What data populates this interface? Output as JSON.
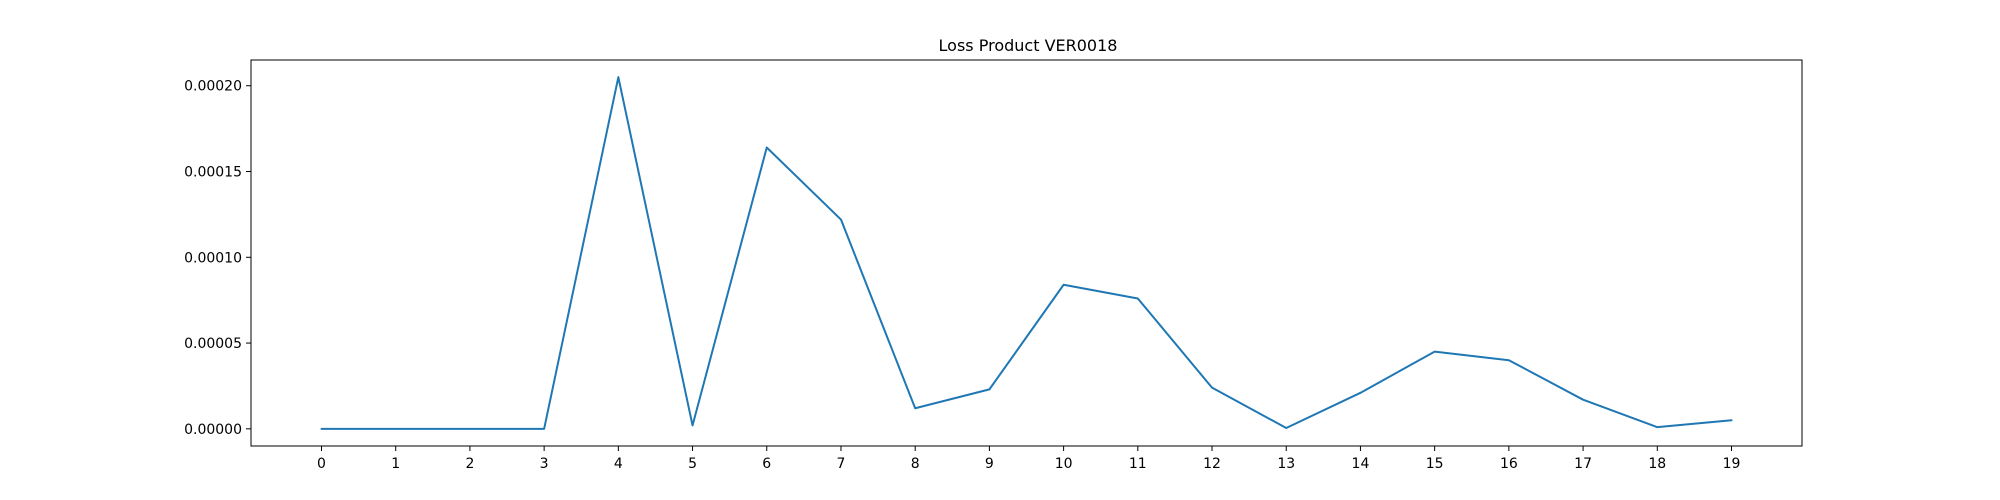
{
  "chart_data": {
    "type": "line",
    "title": "Loss Product VER0018",
    "xlabel": "",
    "ylabel": "",
    "x": [
      0,
      1,
      2,
      3,
      4,
      5,
      6,
      7,
      8,
      9,
      10,
      11,
      12,
      13,
      14,
      15,
      16,
      17,
      18,
      19
    ],
    "x_tick_labels": [
      "0",
      "1",
      "2",
      "3",
      "4",
      "5",
      "6",
      "7",
      "8",
      "9",
      "10",
      "11",
      "12",
      "13",
      "14",
      "15",
      "16",
      "17",
      "18",
      "19"
    ],
    "series": [
      {
        "values": [
          0.0,
          0.0,
          0.0,
          0.0,
          0.000205,
          2e-06,
          0.000164,
          0.000122,
          1.2e-05,
          2.3e-05,
          8.4e-05,
          7.6e-05,
          2.4e-05,
          5e-07,
          2.1e-05,
          4.5e-05,
          4e-05,
          1.7e-05,
          1e-06,
          5e-06
        ],
        "color": "#1f77b4"
      }
    ],
    "y_ticks": [
      0.0,
      5e-05,
      0.0001,
      0.00015,
      0.0002
    ],
    "y_tick_labels": [
      "0.00000",
      "0.00005",
      "0.00010",
      "0.00015",
      "0.00020"
    ],
    "xlim": [
      -0.95,
      19.95
    ],
    "ylim": [
      -1e-05,
      0.000215
    ],
    "grid": false,
    "legend": "none"
  }
}
